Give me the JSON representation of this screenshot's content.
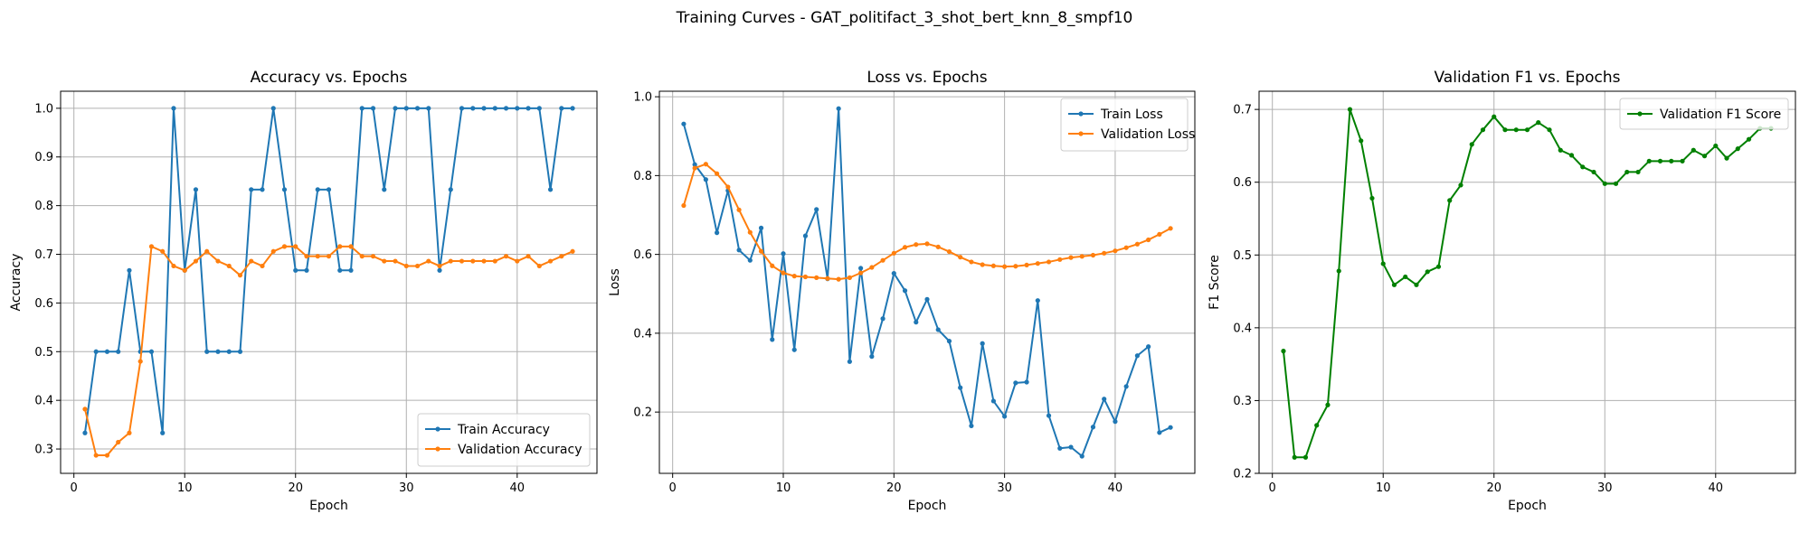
{
  "figure": {
    "suptitle": "Training Curves - GAT_politifact_3_shot_bert_knn_8_smpf10"
  },
  "chart_data": [
    {
      "type": "line",
      "title": "Accuracy vs. Epochs",
      "xlabel": "Epoch",
      "ylabel": "Accuracy",
      "xlim": [
        -1.2,
        47.2
      ],
      "ylim": [
        0.25,
        1.035
      ],
      "xticks": [
        0,
        10,
        20,
        30,
        40
      ],
      "yticks": [
        0.3,
        0.4,
        0.5,
        0.6,
        0.7,
        0.8,
        0.9,
        1.0
      ],
      "grid": true,
      "legend": "lower right",
      "x": [
        1,
        2,
        3,
        4,
        5,
        6,
        7,
        8,
        9,
        10,
        11,
        12,
        13,
        14,
        15,
        16,
        17,
        18,
        19,
        20,
        21,
        22,
        23,
        24,
        25,
        26,
        27,
        28,
        29,
        30,
        31,
        32,
        33,
        34,
        35,
        36,
        37,
        38,
        39,
        40,
        41,
        42,
        43,
        44,
        45
      ],
      "series": [
        {
          "name": "Train Accuracy",
          "color": "#1f77b4",
          "values": [
            0.333,
            0.5,
            0.5,
            0.5,
            0.667,
            0.5,
            0.5,
            0.333,
            1.0,
            0.667,
            0.833,
            0.5,
            0.5,
            0.5,
            0.5,
            0.833,
            0.833,
            1.0,
            0.833,
            0.667,
            0.667,
            0.833,
            0.833,
            0.667,
            0.667,
            1.0,
            1.0,
            0.833,
            1.0,
            1.0,
            1.0,
            1.0,
            0.667,
            0.833,
            1.0,
            1.0,
            1.0,
            1.0,
            1.0,
            1.0,
            1.0,
            1.0,
            0.833,
            1.0,
            1.0
          ]
        },
        {
          "name": "Validation Accuracy",
          "color": "#ff7f0e",
          "values": [
            0.382,
            0.287,
            0.287,
            0.314,
            0.333,
            0.48,
            0.716,
            0.706,
            0.676,
            0.667,
            0.686,
            0.706,
            0.686,
            0.676,
            0.657,
            0.686,
            0.676,
            0.706,
            0.716,
            0.716,
            0.696,
            0.696,
            0.696,
            0.716,
            0.716,
            0.696,
            0.696,
            0.686,
            0.686,
            0.676,
            0.676,
            0.686,
            0.676,
            0.686,
            0.686,
            0.686,
            0.686,
            0.686,
            0.696,
            0.686,
            0.696,
            0.676,
            0.686,
            0.696,
            0.706
          ]
        }
      ]
    },
    {
      "type": "line",
      "title": "Loss vs. Epochs",
      "xlabel": "Epoch",
      "ylabel": "Loss",
      "xlim": [
        -1.2,
        47.2
      ],
      "ylim": [
        0.0445,
        1.014
      ],
      "xticks": [
        0,
        10,
        20,
        30,
        40
      ],
      "yticks": [
        0.2,
        0.4,
        0.6,
        0.8,
        1.0
      ],
      "grid": true,
      "legend": "upper right",
      "x": [
        1,
        2,
        3,
        4,
        5,
        6,
        7,
        8,
        9,
        10,
        11,
        12,
        13,
        14,
        15,
        16,
        17,
        18,
        19,
        20,
        21,
        22,
        23,
        24,
        25,
        26,
        27,
        28,
        29,
        30,
        31,
        32,
        33,
        34,
        35,
        36,
        37,
        38,
        39,
        40,
        41,
        42,
        43,
        44,
        45
      ],
      "series": [
        {
          "name": "Train Loss",
          "color": "#1f77b4",
          "values": [
            0.931,
            0.828,
            0.79,
            0.655,
            0.762,
            0.611,
            0.585,
            0.667,
            0.384,
            0.602,
            0.358,
            0.647,
            0.714,
            0.538,
            0.97,
            0.328,
            0.565,
            0.341,
            0.437,
            0.552,
            0.508,
            0.428,
            0.486,
            0.409,
            0.38,
            0.262,
            0.165,
            0.374,
            0.228,
            0.189,
            0.274,
            0.276,
            0.483,
            0.191,
            0.108,
            0.111,
            0.088,
            0.162,
            0.233,
            0.176,
            0.265,
            0.343,
            0.366,
            0.148,
            0.161
          ]
        },
        {
          "name": "Validation Loss",
          "color": "#ff7f0e",
          "values": [
            0.724,
            0.819,
            0.829,
            0.805,
            0.771,
            0.713,
            0.656,
            0.608,
            0.571,
            0.553,
            0.545,
            0.543,
            0.541,
            0.539,
            0.537,
            0.541,
            0.553,
            0.567,
            0.585,
            0.603,
            0.618,
            0.625,
            0.627,
            0.619,
            0.607,
            0.593,
            0.581,
            0.574,
            0.571,
            0.569,
            0.57,
            0.573,
            0.577,
            0.581,
            0.587,
            0.592,
            0.595,
            0.598,
            0.603,
            0.609,
            0.617,
            0.626,
            0.637,
            0.651,
            0.666
          ]
        }
      ]
    },
    {
      "type": "line",
      "title": "Validation F1 vs. Epochs",
      "xlabel": "Epoch",
      "ylabel": "F1 Score",
      "xlim": [
        -1.2,
        47.2
      ],
      "ylim": [
        0.2,
        0.725
      ],
      "xticks": [
        0,
        10,
        20,
        30,
        40
      ],
      "yticks": [
        0.2,
        0.3,
        0.4,
        0.5,
        0.6,
        0.7
      ],
      "grid": true,
      "legend": "upper right",
      "x": [
        1,
        2,
        3,
        4,
        5,
        6,
        7,
        8,
        9,
        10,
        11,
        12,
        13,
        14,
        15,
        16,
        17,
        18,
        19,
        20,
        21,
        22,
        23,
        24,
        25,
        26,
        27,
        28,
        29,
        30,
        31,
        32,
        33,
        34,
        35,
        36,
        37,
        38,
        39,
        40,
        41,
        42,
        43,
        44,
        45
      ],
      "series": [
        {
          "name": "Validation F1 Score",
          "color": "#008000",
          "values": [
            0.368,
            0.222,
            0.222,
            0.266,
            0.294,
            0.478,
            0.7,
            0.657,
            0.578,
            0.488,
            0.459,
            0.47,
            0.459,
            0.477,
            0.484,
            0.575,
            0.596,
            0.652,
            0.672,
            0.69,
            0.672,
            0.672,
            0.672,
            0.682,
            0.672,
            0.644,
            0.637,
            0.621,
            0.614,
            0.598,
            0.598,
            0.614,
            0.614,
            0.629,
            0.629,
            0.629,
            0.629,
            0.644,
            0.636,
            0.65,
            0.633,
            0.646,
            0.659,
            0.674,
            0.674
          ]
        }
      ]
    }
  ]
}
